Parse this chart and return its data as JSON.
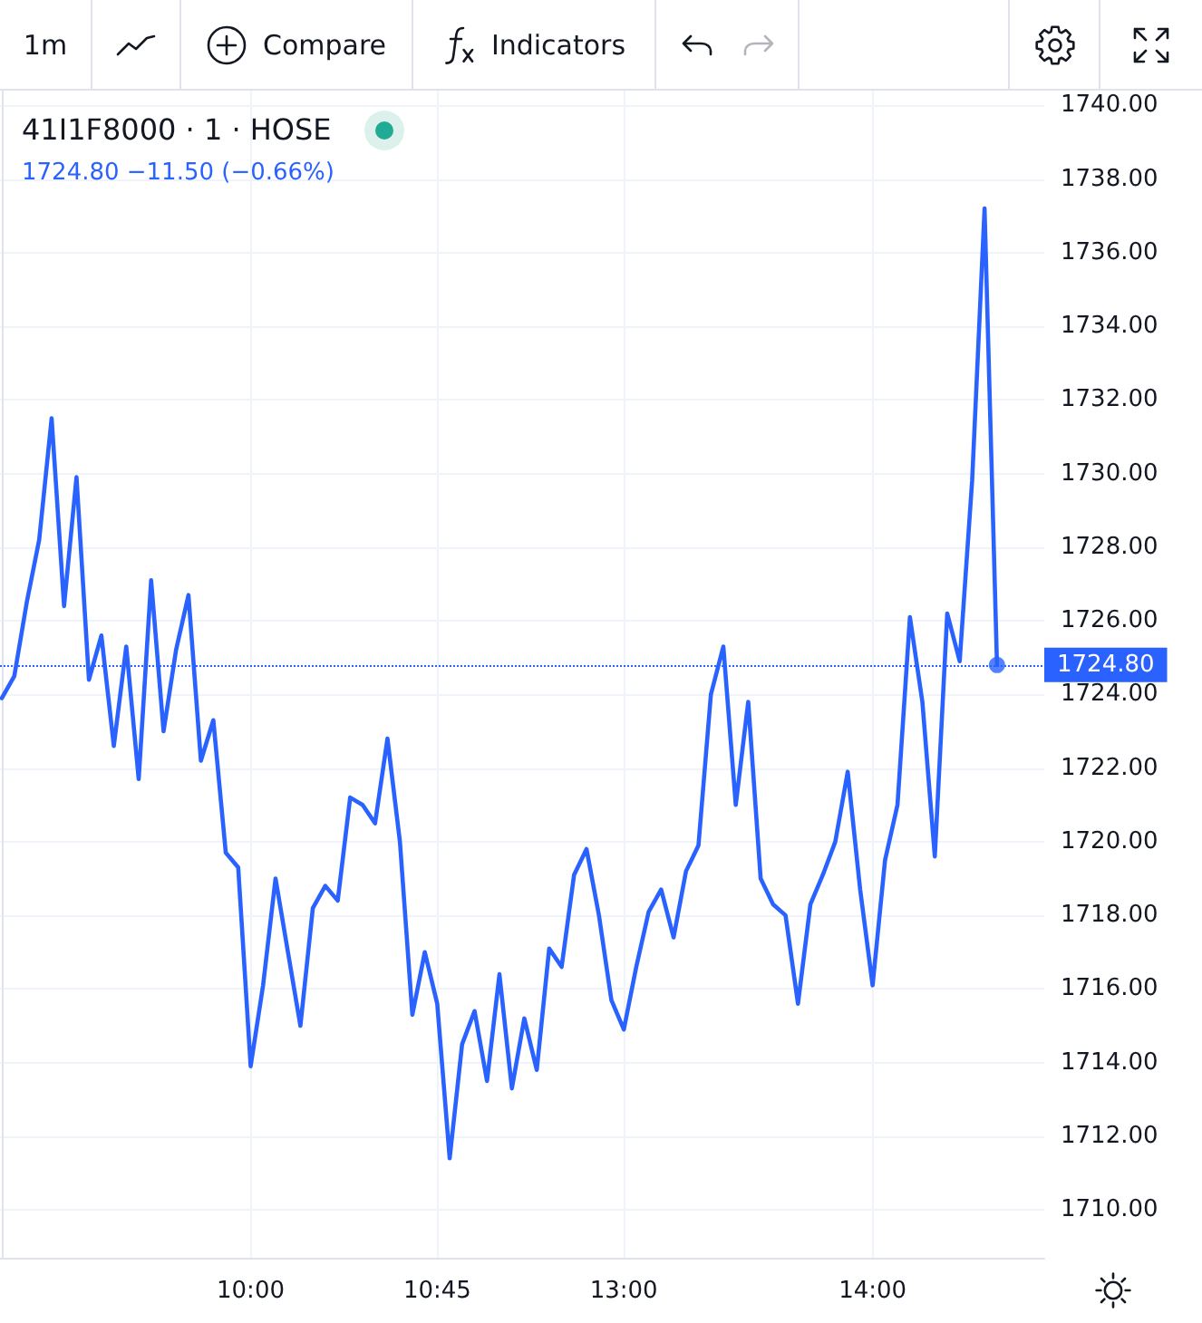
{
  "chart_data": {
    "type": "line",
    "title": "41I1F8000 · 1 · HOSE",
    "subtitle": "1724.80 −11.50 (−0.66%)",
    "annotations": [
      "1m",
      "Compare",
      "Indicators"
    ],
    "categories": [
      null,
      null,
      null,
      null,
      null,
      null,
      null,
      null,
      null,
      null,
      null,
      null,
      null,
      null,
      null,
      null,
      null,
      null,
      null,
      null,
      "10:00",
      null,
      null,
      null,
      null,
      null,
      null,
      null,
      null,
      null,
      null,
      null,
      null,
      null,
      null,
      "10:45",
      null,
      null,
      null,
      null,
      null,
      null,
      null,
      null,
      null,
      null,
      null,
      null,
      null,
      null,
      "13:00",
      null,
      null,
      null,
      null,
      null,
      null,
      null,
      null,
      null,
      null,
      null,
      null,
      null,
      null,
      null,
      null,
      null,
      null,
      null,
      "14:00",
      null,
      null,
      null,
      null,
      null,
      null,
      null,
      null,
      null,
      null
    ],
    "series": [
      {
        "color": "#2962ff",
        "values": [
          1723.9,
          1724.5,
          1726.5,
          1728.2,
          1731.5,
          1726.4,
          1729.9,
          1724.4,
          1725.6,
          1722.6,
          1725.3,
          1721.7,
          1727.1,
          1723.0,
          1725.2,
          1726.7,
          1722.2,
          1723.3,
          1719.7,
          1719.3,
          1713.9,
          1716.1,
          1719.0,
          1717.0,
          1715.0,
          1718.2,
          1718.8,
          1718.4,
          1721.2,
          1721.0,
          1720.5,
          1722.8,
          1720.0,
          1715.3,
          1717.0,
          1715.6,
          1711.4,
          1714.5,
          1715.4,
          1713.5,
          1716.4,
          1713.3,
          1715.2,
          1713.8,
          1717.1,
          1716.6,
          1719.1,
          1719.8,
          1718.0,
          1715.7,
          1714.9,
          1716.6,
          1718.1,
          1718.7,
          1717.4,
          1719.2,
          1719.9,
          1724.0,
          1725.3,
          1721.0,
          1723.8,
          1719.0,
          1718.3,
          1718.0,
          1715.6,
          1718.3,
          1719.1,
          1720.0,
          1721.9,
          1718.7,
          1716.1,
          1719.5,
          1721.0,
          1726.1,
          1723.8,
          1719.6,
          1726.2,
          1724.9,
          1729.8,
          1737.2,
          1724.8
        ]
      },
      {
        "type": "scatter",
        "color": "#2962ff",
        "marker": "circle",
        "values": [
          null,
          null,
          null,
          null,
          null,
          null,
          null,
          null,
          null,
          null,
          null,
          null,
          null,
          null,
          null,
          null,
          null,
          null,
          null,
          null,
          null,
          null,
          null,
          null,
          null,
          null,
          null,
          null,
          null,
          null,
          null,
          null,
          null,
          null,
          null,
          null,
          null,
          null,
          null,
          null,
          null,
          null,
          null,
          null,
          null,
          null,
          null,
          null,
          null,
          null,
          null,
          null,
          null,
          null,
          null,
          null,
          null,
          null,
          null,
          null,
          null,
          null,
          null,
          null,
          null,
          null,
          null,
          null,
          null,
          null,
          null,
          null,
          null,
          null,
          null,
          null,
          null,
          null,
          null,
          null,
          1724.8
        ]
      }
    ],
    "ylim": [
      1708.7,
      1740.4
    ],
    "yticks": [
      {
        "value": 1710,
        "label": "1710.00"
      },
      {
        "value": 1712,
        "label": "1712.00"
      },
      {
        "value": 1714,
        "label": "1714.00"
      },
      {
        "value": 1716,
        "label": "1716.00"
      },
      {
        "value": 1718,
        "label": "1718.00"
      },
      {
        "value": 1720,
        "label": "1720.00"
      },
      {
        "value": 1722,
        "label": "1722.00"
      },
      {
        "value": 1724,
        "label": "1724.00"
      },
      {
        "value": 1726,
        "label": "1726.00"
      },
      {
        "value": 1728,
        "label": "1728.00"
      },
      {
        "value": 1730,
        "label": "1730.00"
      },
      {
        "value": 1732,
        "label": "1732.00"
      },
      {
        "value": 1734,
        "label": "1734.00"
      },
      {
        "value": 1736,
        "label": "1736.00"
      },
      {
        "value": 1738,
        "label": "1738.00"
      },
      {
        "value": 1740,
        "label": "1740.00"
      }
    ],
    "grid": true,
    "ref_lines": [
      {
        "axis": "y",
        "value": 1724.8,
        "label": "1724.80",
        "color": "#2962ff",
        "line_style": "dotted"
      }
    ]
  }
}
